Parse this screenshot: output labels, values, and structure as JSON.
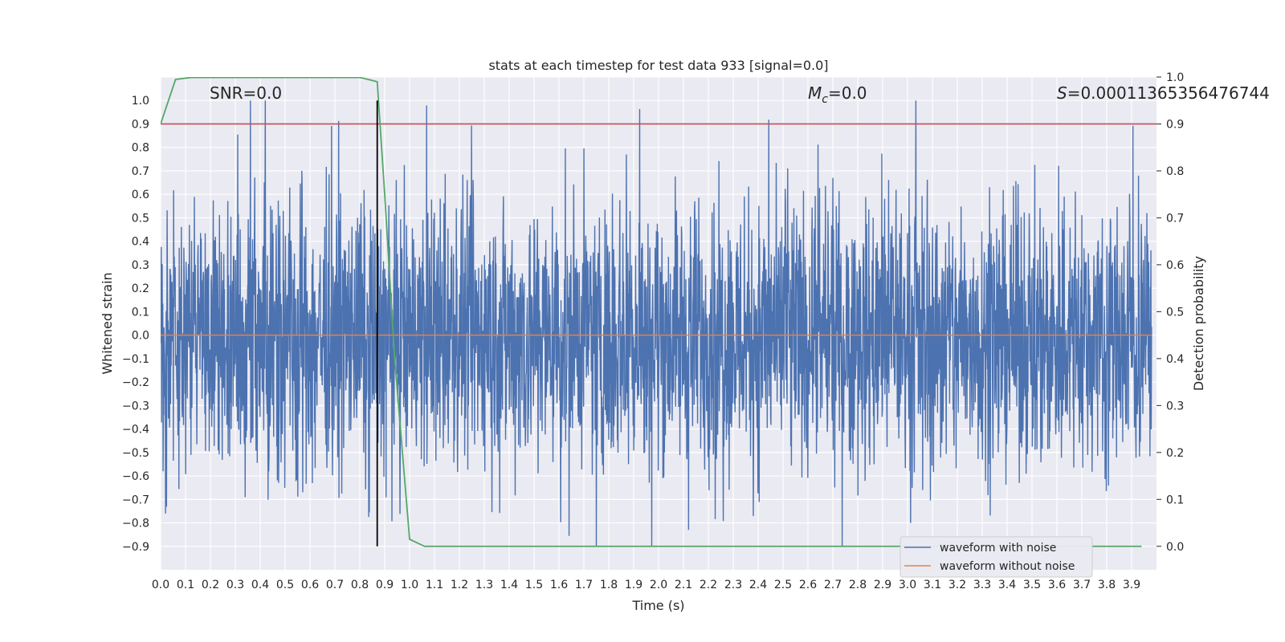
{
  "chart_data": {
    "type": "line",
    "title": "stats at each timestep for test data 933 [signal=0.0]",
    "xlabel": "Time (s)",
    "ylabel": "Whitened strain",
    "y2label": "Detection probability",
    "xlim": [
      0.0,
      4.0
    ],
    "ylim": [
      -1.0,
      1.1
    ],
    "y2lim": [
      -0.05,
      1.0
    ],
    "xticks": [
      0.0,
      0.1,
      0.2,
      0.3,
      0.4,
      0.5,
      0.6,
      0.7,
      0.8,
      0.9,
      1.0,
      1.1,
      1.2,
      1.3,
      1.4,
      1.5,
      1.6,
      1.7,
      1.8,
      1.9,
      2.0,
      2.1,
      2.2,
      2.3,
      2.4,
      2.5,
      2.6,
      2.7,
      2.8,
      2.9,
      3.0,
      3.1,
      3.2,
      3.3,
      3.4,
      3.5,
      3.6,
      3.7,
      3.8,
      3.9
    ],
    "yticks": [
      1.0,
      0.9,
      0.8,
      0.7,
      0.6,
      0.5,
      0.4,
      0.3,
      0.2,
      0.1,
      0.0,
      -0.1,
      -0.2,
      -0.3,
      -0.4,
      -0.5,
      -0.6,
      -0.7,
      -0.8,
      -0.9
    ],
    "y2ticks": [
      1.0,
      0.9,
      0.8,
      0.7,
      0.6,
      0.5,
      0.4,
      0.3,
      0.2,
      0.1,
      0.0
    ],
    "grid": true,
    "legend_position": "lower-right",
    "annotations": {
      "snr": "SNR=0.0",
      "mc_symbol": "M",
      "mc_sub": "c",
      "mc_value": "=0.0",
      "s_symbol": "S",
      "s_value": "=0.00011365356476744"
    },
    "series": [
      {
        "name": "waveform with noise",
        "color": "#4c72b0",
        "axis": "left",
        "kind": "noise",
        "amplitude_envelope": [
          -0.9,
          1.0
        ],
        "notable_peaks": [
          {
            "x": 0.42,
            "y": 1.0
          },
          {
            "x": 0.02,
            "y": -0.76
          },
          {
            "x": 1.75,
            "y": -0.9
          },
          {
            "x": 1.87,
            "y": 0.77
          },
          {
            "x": 2.12,
            "y": -0.83
          }
        ]
      },
      {
        "name": "waveform without noise",
        "color": "#dd8452",
        "axis": "left",
        "kind": "constant",
        "value": 0.0
      },
      {
        "name": "detection probability",
        "color": "#55a868",
        "axis": "right",
        "x": [
          0.0,
          0.06,
          0.12,
          0.2,
          0.4,
          0.6,
          0.8,
          0.81,
          0.87,
          0.9,
          0.94,
          1.0,
          1.06,
          1.5,
          2.0,
          3.0,
          3.94
        ],
        "values": [
          0.9,
          0.995,
          0.999,
          0.999,
          0.999,
          0.999,
          0.999,
          0.998,
          0.99,
          0.75,
          0.4,
          0.015,
          0.0,
          0.0,
          0.0,
          0.0,
          0.0
        ]
      }
    ],
    "hlines": [
      {
        "name": "threshold",
        "color": "#c44e52",
        "axis": "right",
        "value": 0.9
      }
    ],
    "vlines": [
      {
        "name": "event-marker",
        "color": "#000000",
        "x": 0.87,
        "y_range": [
          -0.9,
          1.0
        ]
      }
    ]
  }
}
